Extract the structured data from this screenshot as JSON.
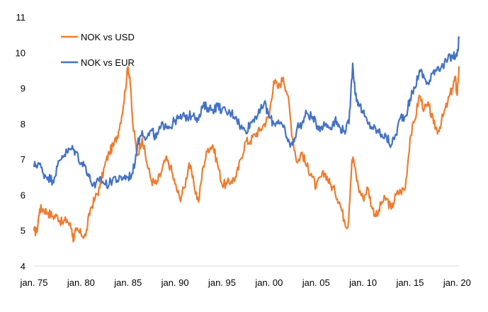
{
  "chart_data": {
    "type": "line",
    "title": "",
    "xlabel": "",
    "ylabel": "",
    "ylim": [
      4,
      11
    ],
    "xlim": [
      1975,
      2020.2
    ],
    "y_ticks": [
      "4",
      "5",
      "6",
      "7",
      "8",
      "9",
      "10",
      "11"
    ],
    "x_ticks": [
      {
        "year": 1975,
        "label": "jan. 75"
      },
      {
        "year": 1980,
        "label": "jan. 80"
      },
      {
        "year": 1985,
        "label": "jan. 85"
      },
      {
        "year": 1990,
        "label": "jan. 90"
      },
      {
        "year": 1995,
        "label": "jan. 95"
      },
      {
        "year": 2000,
        "label": "jan. 00"
      },
      {
        "year": 2005,
        "label": "jan. 05"
      },
      {
        "year": 2010,
        "label": "jan. 10"
      },
      {
        "year": 2015,
        "label": "jan. 15"
      },
      {
        "year": 2020,
        "label": "jan. 20"
      }
    ],
    "legend_position": "top-left",
    "series": [
      {
        "name": "NOK vs USD",
        "color": "#ED7D31",
        "points": [
          [
            1975.0,
            5.0
          ],
          [
            1975.3,
            4.95
          ],
          [
            1975.6,
            5.6
          ],
          [
            1976.0,
            5.6
          ],
          [
            1976.5,
            5.5
          ],
          [
            1977.0,
            5.4
          ],
          [
            1977.5,
            5.4
          ],
          [
            1978.0,
            5.2
          ],
          [
            1978.5,
            5.3
          ],
          [
            1979.0,
            5.05
          ],
          [
            1979.2,
            4.75
          ],
          [
            1979.5,
            5.0
          ],
          [
            1980.0,
            4.9
          ],
          [
            1980.5,
            4.85
          ],
          [
            1981.0,
            5.6
          ],
          [
            1981.5,
            5.9
          ],
          [
            1982.0,
            6.2
          ],
          [
            1982.5,
            6.8
          ],
          [
            1983.0,
            7.2
          ],
          [
            1983.5,
            7.4
          ],
          [
            1984.0,
            7.8
          ],
          [
            1984.5,
            8.5
          ],
          [
            1985.0,
            9.6
          ],
          [
            1985.2,
            9.3
          ],
          [
            1985.5,
            8.0
          ],
          [
            1986.0,
            7.1
          ],
          [
            1986.5,
            7.6
          ],
          [
            1987.0,
            6.9
          ],
          [
            1987.5,
            6.4
          ],
          [
            1988.0,
            6.3
          ],
          [
            1988.5,
            6.6
          ],
          [
            1989.0,
            7.0
          ],
          [
            1989.5,
            6.8
          ],
          [
            1990.0,
            6.3
          ],
          [
            1990.5,
            5.9
          ],
          [
            1991.0,
            6.2
          ],
          [
            1991.5,
            6.9
          ],
          [
            1992.0,
            6.3
          ],
          [
            1992.5,
            5.8
          ],
          [
            1993.0,
            6.8
          ],
          [
            1993.5,
            7.3
          ],
          [
            1994.0,
            7.4
          ],
          [
            1994.5,
            6.9
          ],
          [
            1995.0,
            6.3
          ],
          [
            1995.5,
            6.3
          ],
          [
            1996.0,
            6.4
          ],
          [
            1996.5,
            6.5
          ],
          [
            1997.0,
            7.0
          ],
          [
            1997.5,
            7.5
          ],
          [
            1998.0,
            7.5
          ],
          [
            1998.5,
            7.7
          ],
          [
            1999.0,
            7.8
          ],
          [
            1999.5,
            8.0
          ],
          [
            2000.0,
            8.2
          ],
          [
            2000.5,
            9.2
          ],
          [
            2001.0,
            9.0
          ],
          [
            2001.5,
            9.3
          ],
          [
            2002.0,
            8.8
          ],
          [
            2002.5,
            7.6
          ],
          [
            2003.0,
            6.9
          ],
          [
            2003.5,
            7.2
          ],
          [
            2004.0,
            6.8
          ],
          [
            2004.5,
            6.6
          ],
          [
            2005.0,
            6.2
          ],
          [
            2005.5,
            6.5
          ],
          [
            2006.0,
            6.6
          ],
          [
            2006.5,
            6.3
          ],
          [
            2007.0,
            6.1
          ],
          [
            2007.5,
            5.8
          ],
          [
            2008.0,
            5.3
          ],
          [
            2008.4,
            5.1
          ],
          [
            2008.8,
            6.9
          ],
          [
            2009.0,
            7.0
          ],
          [
            2009.5,
            6.2
          ],
          [
            2010.0,
            5.9
          ],
          [
            2010.5,
            6.2
          ],
          [
            2011.0,
            5.6
          ],
          [
            2011.5,
            5.4
          ],
          [
            2012.0,
            5.8
          ],
          [
            2012.5,
            5.9
          ],
          [
            2013.0,
            5.6
          ],
          [
            2013.5,
            6.0
          ],
          [
            2014.0,
            6.1
          ],
          [
            2014.5,
            6.2
          ],
          [
            2015.0,
            7.6
          ],
          [
            2015.5,
            8.1
          ],
          [
            2016.0,
            8.8
          ],
          [
            2016.5,
            8.4
          ],
          [
            2017.0,
            8.5
          ],
          [
            2017.5,
            8.0
          ],
          [
            2018.0,
            7.8
          ],
          [
            2018.5,
            8.2
          ],
          [
            2019.0,
            8.6
          ],
          [
            2019.5,
            9.0
          ],
          [
            2019.8,
            9.3
          ],
          [
            2020.0,
            8.8
          ],
          [
            2020.2,
            9.6
          ]
        ]
      },
      {
        "name": "NOK vs EUR",
        "color": "#4472C4",
        "points": [
          [
            1975.0,
            6.8
          ],
          [
            1975.5,
            6.9
          ],
          [
            1976.0,
            6.6
          ],
          [
            1976.5,
            6.5
          ],
          [
            1977.0,
            6.4
          ],
          [
            1977.5,
            6.8
          ],
          [
            1978.0,
            7.1
          ],
          [
            1978.5,
            7.2
          ],
          [
            1979.0,
            7.3
          ],
          [
            1979.5,
            7.2
          ],
          [
            1980.0,
            6.9
          ],
          [
            1980.5,
            6.8
          ],
          [
            1981.0,
            6.4
          ],
          [
            1981.5,
            6.2
          ],
          [
            1982.0,
            6.5
          ],
          [
            1982.5,
            6.3
          ],
          [
            1983.0,
            6.3
          ],
          [
            1983.5,
            6.5
          ],
          [
            1984.0,
            6.4
          ],
          [
            1984.5,
            6.5
          ],
          [
            1985.0,
            6.5
          ],
          [
            1985.5,
            6.6
          ],
          [
            1986.0,
            7.4
          ],
          [
            1986.5,
            7.8
          ],
          [
            1987.0,
            7.6
          ],
          [
            1987.5,
            7.8
          ],
          [
            1988.0,
            7.6
          ],
          [
            1988.5,
            7.9
          ],
          [
            1989.0,
            8.0
          ],
          [
            1989.5,
            7.9
          ],
          [
            1990.0,
            8.1
          ],
          [
            1990.5,
            8.15
          ],
          [
            1991.0,
            8.2
          ],
          [
            1991.5,
            8.2
          ],
          [
            1992.0,
            8.3
          ],
          [
            1992.5,
            8.1
          ],
          [
            1993.0,
            8.5
          ],
          [
            1993.5,
            8.45
          ],
          [
            1994.0,
            8.4
          ],
          [
            1994.5,
            8.5
          ],
          [
            1995.0,
            8.4
          ],
          [
            1995.5,
            8.3
          ],
          [
            1996.0,
            8.3
          ],
          [
            1996.5,
            8.2
          ],
          [
            1997.0,
            7.9
          ],
          [
            1997.5,
            7.8
          ],
          [
            1998.0,
            8.0
          ],
          [
            1998.5,
            8.2
          ],
          [
            1999.0,
            8.3
          ],
          [
            1999.5,
            8.6
          ],
          [
            2000.0,
            8.2
          ],
          [
            2000.5,
            8.0
          ],
          [
            2001.0,
            8.1
          ],
          [
            2001.5,
            7.9
          ],
          [
            2002.0,
            7.5
          ],
          [
            2002.5,
            7.4
          ],
          [
            2003.0,
            7.9
          ],
          [
            2003.5,
            8.0
          ],
          [
            2004.0,
            8.3
          ],
          [
            2004.5,
            8.2
          ],
          [
            2005.0,
            8.0
          ],
          [
            2005.5,
            7.9
          ],
          [
            2006.0,
            8.0
          ],
          [
            2006.5,
            7.9
          ],
          [
            2007.0,
            8.1
          ],
          [
            2007.5,
            7.9
          ],
          [
            2008.0,
            7.8
          ],
          [
            2008.5,
            8.0
          ],
          [
            2008.9,
            9.7
          ],
          [
            2009.2,
            8.8
          ],
          [
            2009.5,
            8.6
          ],
          [
            2010.0,
            8.3
          ],
          [
            2010.5,
            8.0
          ],
          [
            2011.0,
            7.9
          ],
          [
            2011.5,
            7.8
          ],
          [
            2012.0,
            7.7
          ],
          [
            2012.5,
            7.6
          ],
          [
            2013.0,
            7.4
          ],
          [
            2013.5,
            7.7
          ],
          [
            2014.0,
            8.2
          ],
          [
            2014.5,
            8.2
          ],
          [
            2015.0,
            8.7
          ],
          [
            2015.5,
            9.0
          ],
          [
            2016.0,
            9.5
          ],
          [
            2016.5,
            9.3
          ],
          [
            2017.0,
            9.1
          ],
          [
            2017.5,
            9.5
          ],
          [
            2018.0,
            9.6
          ],
          [
            2018.5,
            9.6
          ],
          [
            2019.0,
            9.8
          ],
          [
            2019.5,
            9.9
          ],
          [
            2020.0,
            9.9
          ],
          [
            2020.2,
            10.4
          ]
        ]
      }
    ]
  }
}
